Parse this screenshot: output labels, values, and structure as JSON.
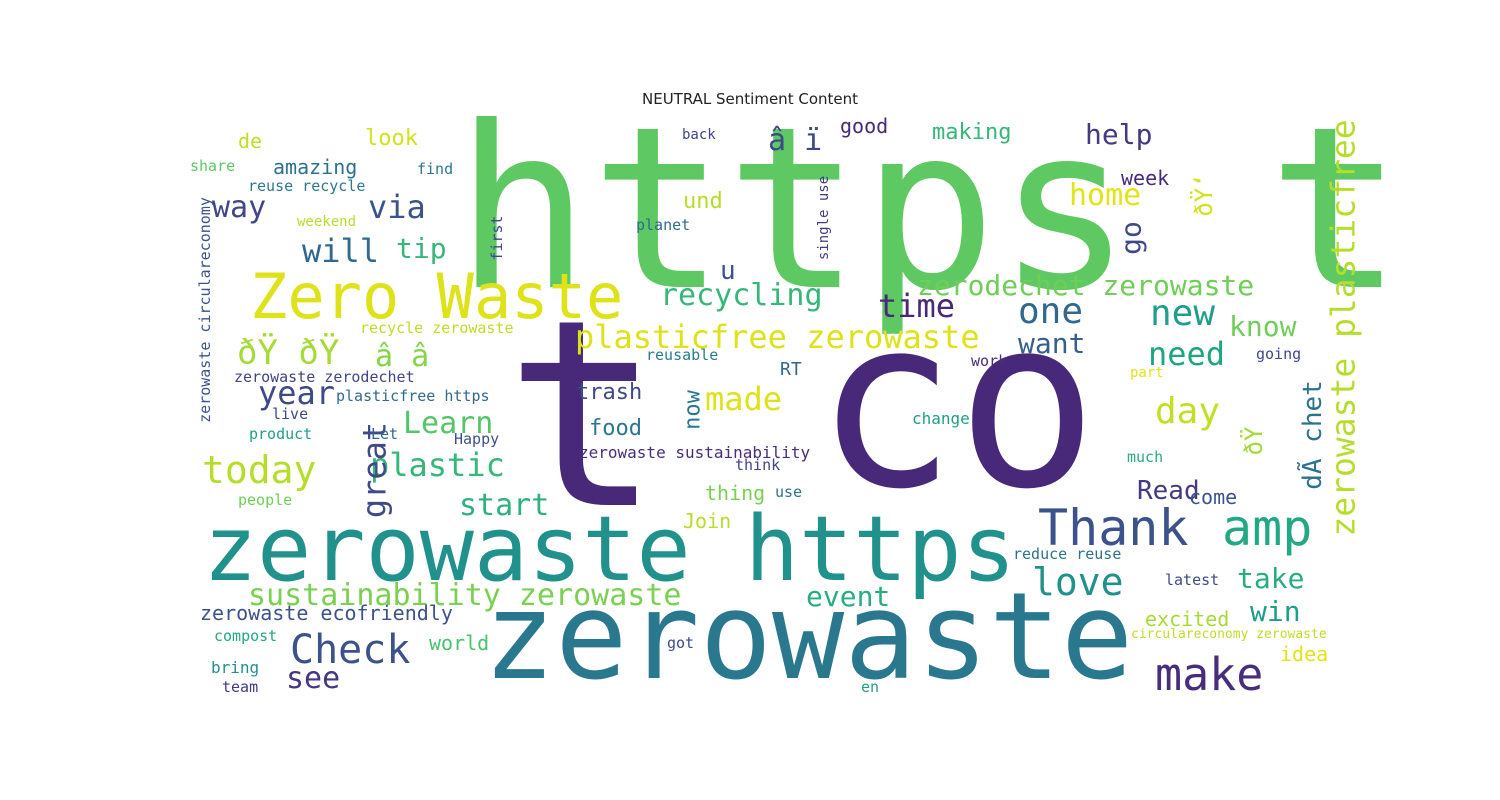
{
  "title": "NEUTRAL Sentiment Content",
  "words": [
    {
      "text": "https t",
      "color": "#5ec962"
    },
    {
      "text": "t",
      "color": "#482878"
    },
    {
      "text": "co",
      "color": "#482878"
    },
    {
      "text": "zerowaste",
      "color": "#2a788e"
    },
    {
      "text": "zerowaste https",
      "color": "#21918c"
    },
    {
      "text": "Zero Waste",
      "color": "#dde318"
    },
    {
      "text": "Thank",
      "color": "#3b528b"
    },
    {
      "text": "amp",
      "color": "#22a884"
    },
    {
      "text": "make",
      "color": "#472d7b"
    },
    {
      "text": "Check",
      "color": "#3b528b"
    },
    {
      "text": "today",
      "color": "#b5de2b"
    },
    {
      "text": "plasticfree zerowaste",
      "color": "#dde318"
    },
    {
      "text": "zerowaste plasticfree",
      "color": "#b5de2b"
    },
    {
      "text": "recycling",
      "color": "#35b779"
    },
    {
      "text": "love",
      "color": "#21918c"
    },
    {
      "text": "sustainability zerowaste",
      "color": "#7ad151"
    },
    {
      "text": "zerodechet zerowaste",
      "color": "#6ece58"
    },
    {
      "text": "new",
      "color": "#1f9e89"
    },
    {
      "text": "one",
      "color": "#31688e"
    },
    {
      "text": "need",
      "color": "#20a486"
    },
    {
      "text": "day",
      "color": "#c2df23"
    },
    {
      "text": "plastic",
      "color": "#35b779"
    },
    {
      "text": "great",
      "color": "#3e4989"
    },
    {
      "text": "will",
      "color": "#31688e"
    },
    {
      "text": "way",
      "color": "#404688"
    },
    {
      "text": "via",
      "color": "#3b528b"
    },
    {
      "text": "tip",
      "color": "#35b779"
    },
    {
      "text": "year",
      "color": "#3e4989"
    },
    {
      "text": "Learn",
      "color": "#54c568"
    },
    {
      "text": "made",
      "color": "#dde318"
    },
    {
      "text": "start",
      "color": "#2db27d"
    },
    {
      "text": "time",
      "color": "#482878"
    },
    {
      "text": "want",
      "color": "#355f8d"
    },
    {
      "text": "know",
      "color": "#6ece58"
    },
    {
      "text": "help",
      "color": "#443983"
    },
    {
      "text": "home",
      "color": "#e2e418"
    },
    {
      "text": "go",
      "color": "#3e4989"
    },
    {
      "text": "Read",
      "color": "#443983"
    },
    {
      "text": "take",
      "color": "#26ad81"
    },
    {
      "text": "win",
      "color": "#1f9e89"
    },
    {
      "text": "event",
      "color": "#27ad81"
    },
    {
      "text": "see",
      "color": "#453781"
    },
    {
      "text": "dÃ chet",
      "color": "#2c728e"
    },
    {
      "text": "ðŸ",
      "color": "#a2da37"
    },
    {
      "text": "ðŸ‘",
      "color": "#d2e21b"
    },
    {
      "text": "ðŸ ðŸ",
      "color": "#a5db36"
    },
    {
      "text": "â â",
      "color": "#86d549"
    },
    {
      "text": "â ï",
      "color": "#3e4989"
    },
    {
      "text": "u",
      "color": "#3b528b"
    },
    {
      "text": "und",
      "color": "#b5de2b"
    },
    {
      "text": "food",
      "color": "#2a788e"
    },
    {
      "text": "trash",
      "color": "#3e4989"
    },
    {
      "text": "now",
      "color": "#2a788e"
    },
    {
      "text": "come",
      "color": "#3b528b"
    },
    {
      "text": "amazing",
      "color": "#2c728e"
    },
    {
      "text": "de",
      "color": "#bddf26"
    },
    {
      "text": "look",
      "color": "#d2e21b"
    },
    {
      "text": "making",
      "color": "#35b779"
    },
    {
      "text": "good",
      "color": "#482878"
    },
    {
      "text": "excited",
      "color": "#a5db36"
    },
    {
      "text": "idea",
      "color": "#e2e418"
    },
    {
      "text": "world",
      "color": "#4ac16d"
    },
    {
      "text": "thing",
      "color": "#7ad151"
    },
    {
      "text": "Join",
      "color": "#b5de2b"
    },
    {
      "text": "week",
      "color": "#482878"
    },
    {
      "text": "zerowaste ecofriendly",
      "color": "#3b528b"
    },
    {
      "text": "zerowaste sustainability",
      "color": "#472d7b"
    },
    {
      "text": "zerowaste zerodechet",
      "color": "#414487"
    },
    {
      "text": "plasticfree https",
      "color": "#31688e"
    },
    {
      "text": "recycle zerowaste",
      "color": "#bddf26"
    },
    {
      "text": "reuse recycle",
      "color": "#2a788e"
    },
    {
      "text": "zerowaste circulareconomy",
      "color": "#3b528b"
    },
    {
      "text": "circulareconomy zerowaste",
      "color": "#bddf26"
    },
    {
      "text": "reduce reuse",
      "color": "#2c728e"
    },
    {
      "text": "single use",
      "color": "#443983"
    },
    {
      "text": "share",
      "color": "#5ec962"
    },
    {
      "text": "find",
      "color": "#2a788e"
    },
    {
      "text": "weekend",
      "color": "#b5de2b"
    },
    {
      "text": "first",
      "color": "#3e4989"
    },
    {
      "text": "planet",
      "color": "#31688e"
    },
    {
      "text": "back",
      "color": "#414487"
    },
    {
      "text": "reusable",
      "color": "#287c8e"
    },
    {
      "text": "RT",
      "color": "#31688e"
    },
    {
      "text": "work",
      "color": "#472d7b"
    },
    {
      "text": "going",
      "color": "#404688"
    },
    {
      "text": "part",
      "color": "#e2e418"
    },
    {
      "text": "live",
      "color": "#3e4989"
    },
    {
      "text": "product",
      "color": "#1f9e89"
    },
    {
      "text": "Let",
      "color": "#31688e"
    },
    {
      "text": "Happy",
      "color": "#3b528b"
    },
    {
      "text": "change",
      "color": "#1f9e89"
    },
    {
      "text": "think",
      "color": "#414487"
    },
    {
      "text": "use",
      "color": "#2c728e"
    },
    {
      "text": "much",
      "color": "#26ad81"
    },
    {
      "text": "people",
      "color": "#6ece58"
    },
    {
      "text": "latest",
      "color": "#3e4989"
    },
    {
      "text": "compost",
      "color": "#22a884"
    },
    {
      "text": "bring",
      "color": "#21918c"
    },
    {
      "text": "team",
      "color": "#443983"
    },
    {
      "text": "got",
      "color": "#3e4989"
    },
    {
      "text": "en",
      "color": "#1f9e89"
    }
  ]
}
